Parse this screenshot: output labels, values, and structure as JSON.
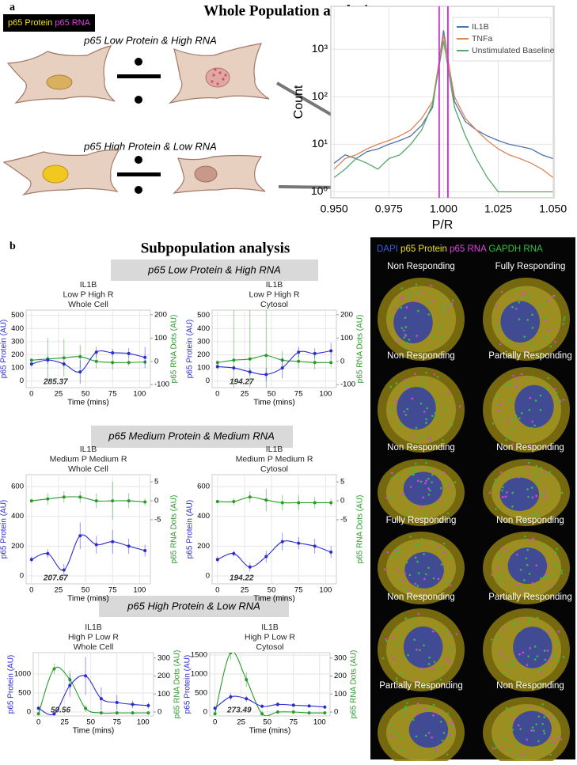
{
  "panel_a": {
    "label": "a",
    "title": "Whole Population analysis",
    "legend_protein": "p65 Protein",
    "legend_rna": "p65 RNA",
    "row1": "p65 Low Protein & High RNA",
    "row2": "p65 High Protein & Low RNA"
  },
  "panel_b": {
    "label": "b",
    "title": "Subpopulation analysis",
    "groups": [
      "p65 Low Protein & High RNA",
      "p65 Medium Protein & Medium RNA",
      "p65 High Protein & Low RNA"
    ]
  },
  "micrograph": {
    "channels": [
      {
        "name": "DAPI",
        "color": "#3a5fd8"
      },
      {
        "name": "p65 Protein",
        "color": "#f0e020"
      },
      {
        "name": "p65 RNA",
        "color": "#e040e0"
      },
      {
        "name": "GAPDH RNA",
        "color": "#30c040"
      }
    ],
    "cells": [
      "Non Responding",
      "Fully Responding",
      "Non Responding",
      "Partially Responding",
      "Non Responding",
      "Non Responding",
      "Fully Responding",
      "Non Responding",
      "Non Responding",
      "Partially Responding",
      "Partially Responding",
      "Non Responding"
    ]
  },
  "chart_data": [
    {
      "type": "line",
      "xlabel": "P/R",
      "ylabel": "Count",
      "log_y": true,
      "grid": true,
      "legend": "upper right",
      "xlim": [
        0.9485,
        1.0505
      ],
      "ylim": [
        0.75,
        8000
      ],
      "xticks": [
        {
          "value": 0.95,
          "label": "0.950"
        },
        0.975,
        {
          "value": 1.0,
          "label": "1.000"
        },
        1.025,
        {
          "value": 1.05,
          "label": "1.050"
        }
      ],
      "yticks": [
        {
          "value": 1,
          "label": "10⁰"
        },
        {
          "value": 10,
          "label": "10¹"
        },
        {
          "value": 100,
          "label": "10²"
        },
        {
          "value": 1000,
          "label": "10³"
        }
      ],
      "vlines": [
        0.998,
        1.002
      ],
      "vline_color": "#e020e0",
      "x": [
        0.95,
        0.955,
        0.96,
        0.965,
        0.97,
        0.975,
        0.98,
        0.985,
        0.99,
        0.995,
        1.0,
        1.005,
        1.01,
        1.015,
        1.02,
        1.025,
        1.03,
        1.035,
        1.04,
        1.045,
        1.05
      ],
      "series": [
        {
          "name": "IL1B",
          "color": "#4c72b0",
          "values": [
            4,
            6,
            5,
            7,
            8,
            10,
            12,
            15,
            25,
            60,
            2500,
            80,
            30,
            20,
            15,
            12,
            10,
            9,
            8,
            6,
            5
          ]
        },
        {
          "name": "TNFa",
          "color": "#dd8452",
          "values": [
            3,
            5,
            6,
            8,
            10,
            12,
            15,
            20,
            35,
            80,
            2000,
            100,
            35,
            20,
            12,
            8,
            6,
            5,
            4,
            3,
            2
          ]
        },
        {
          "name": "Unstimulated Baseline",
          "color": "#55a868",
          "values": [
            2,
            3,
            5,
            4,
            3,
            5,
            6,
            10,
            20,
            70,
            1500,
            60,
            15,
            5,
            2,
            1,
            1,
            1,
            1,
            1,
            1
          ]
        }
      ]
    },
    {
      "type": "dual",
      "title": [
        "IL1B",
        "Low P High R",
        "Whole Cell"
      ],
      "xlabel": "Time (mins)",
      "ylabel": "p65 Protein (AU)",
      "y2label": "p65 RNA Dots (AU)",
      "annotation": "285.37",
      "grid": true,
      "xlim": [
        -5,
        110
      ],
      "xticks": [
        0,
        25,
        50,
        75,
        100
      ],
      "ylim": [
        -50,
        540
      ],
      "yticks": [
        0,
        100,
        200,
        300,
        400,
        500
      ],
      "y2lim": [
        -113,
        220
      ],
      "y2ticks": [
        -100,
        0,
        100,
        200
      ],
      "x": [
        0,
        15,
        30,
        45,
        60,
        75,
        90,
        105
      ],
      "series": [
        {
          "color": "#2b2bd0",
          "values": [
            130,
            160,
            130,
            70,
            220,
            215,
            210,
            180
          ],
          "errors": [
            20,
            30,
            25,
            90,
            40,
            30,
            40,
            80
          ]
        },
        {
          "color": "#2a9a2a",
          "axis": "y2",
          "values": [
            5,
            10,
            15,
            20,
            0,
            -5,
            -5,
            -3
          ],
          "errors": [
            5,
            90,
            80,
            50,
            30,
            30,
            15,
            10
          ]
        }
      ]
    },
    {
      "type": "dual",
      "title": [
        "IL1B",
        "Low P High R",
        "Cytosol"
      ],
      "xlabel": "Time (mins)",
      "ylabel": "p65 Protein (AU)",
      "y2label": "p65 RNA Dots (AU)",
      "annotation": "194.27",
      "grid": true,
      "xlim": [
        -5,
        110
      ],
      "xticks": [
        0,
        25,
        50,
        75,
        100
      ],
      "ylim": [
        -50,
        540
      ],
      "yticks": [
        0,
        100,
        200,
        300,
        400,
        500
      ],
      "y2lim": [
        -113,
        220
      ],
      "y2ticks": [
        -100,
        0,
        100,
        200
      ],
      "x": [
        0,
        15,
        30,
        45,
        60,
        75,
        90,
        105
      ],
      "series": [
        {
          "color": "#2b2bd0",
          "values": [
            110,
            100,
            70,
            50,
            100,
            220,
            210,
            230
          ],
          "errors": [
            20,
            20,
            30,
            50,
            80,
            40,
            40,
            60
          ]
        },
        {
          "color": "#2a9a2a",
          "axis": "y2",
          "values": [
            -5,
            5,
            10,
            25,
            5,
            0,
            -5,
            -5
          ],
          "errors": [
            10,
            250,
            300,
            200,
            40,
            30,
            30,
            20
          ]
        }
      ]
    },
    {
      "type": "dual",
      "title": [
        "IL1B",
        "Medium P Medium R",
        "Whole Cell"
      ],
      "xlabel": "Time (mins)",
      "ylabel": "p65 Protein (AU)",
      "y2label": "p65 RNA Dots (AU)",
      "annotation": "207.67",
      "grid": true,
      "xlim": [
        -5,
        110
      ],
      "xticks": [
        0,
        25,
        50,
        75,
        100
      ],
      "ylim": [
        -53,
        680
      ],
      "yticks": [
        0,
        200,
        400,
        600
      ],
      "y2lim": [
        -21.9,
        6.9
      ],
      "y2ticks": [
        -5,
        0,
        5
      ],
      "x": [
        0,
        15,
        30,
        45,
        60,
        75,
        90,
        105
      ],
      "series": [
        {
          "color": "#2b2bd0",
          "values": [
            110,
            150,
            40,
            270,
            210,
            230,
            200,
            170
          ],
          "errors": [
            20,
            30,
            40,
            90,
            60,
            80,
            50,
            40
          ]
        },
        {
          "color": "#2a9a2a",
          "axis": "y2",
          "values": [
            0,
            0.5,
            1,
            1,
            0,
            0,
            0,
            -0.3
          ],
          "errors": [
            0.5,
            1.5,
            1.5,
            1.5,
            2,
            5,
            2,
            1
          ]
        }
      ]
    },
    {
      "type": "dual",
      "title": [
        "IL1B",
        "Medium P Medium R",
        "Cytosol"
      ],
      "xlabel": "Time (mins)",
      "ylabel": "p65 Protein (AU)",
      "y2label": "p65 RNA Dots (AU)",
      "annotation": "194.22",
      "grid": true,
      "xlim": [
        -5,
        110
      ],
      "xticks": [
        0,
        25,
        50,
        75,
        100
      ],
      "ylim": [
        -53,
        680
      ],
      "yticks": [
        0,
        200,
        400,
        600
      ],
      "y2lim": [
        -21.9,
        6.9
      ],
      "y2ticks": [
        -5,
        0,
        5
      ],
      "x": [
        0,
        15,
        30,
        45,
        60,
        75,
        90,
        105
      ],
      "series": [
        {
          "color": "#2b2bd0",
          "values": [
            110,
            150,
            60,
            130,
            230,
            220,
            200,
            160
          ],
          "errors": [
            20,
            20,
            30,
            40,
            60,
            40,
            50,
            40
          ]
        },
        {
          "color": "#2a9a2a",
          "axis": "y2",
          "values": [
            -0.2,
            -0.2,
            1,
            0.2,
            -0.5,
            -0.5,
            -0.5,
            -0.5
          ],
          "errors": [
            0.5,
            1,
            1.5,
            3,
            2,
            2,
            1.5,
            1
          ]
        }
      ]
    },
    {
      "type": "dual",
      "title": [
        "IL1B",
        "High P Low R",
        "Whole Cell"
      ],
      "xlabel": "Time (mins)",
      "ylabel": "p65 Protein (AU)",
      "y2label": "p65 RNA Dots (AU)",
      "annotation": "50.56",
      "grid": true,
      "xlim": [
        -5,
        110
      ],
      "xticks": [
        0,
        25,
        50,
        75,
        100
      ],
      "ylim": [
        -104,
        1563
      ],
      "yticks": [
        0,
        500,
        1000
      ],
      "y2lim": [
        -22,
        330
      ],
      "y2ticks": [
        0,
        100,
        200,
        300
      ],
      "x": [
        0,
        15,
        30,
        45,
        60,
        75,
        90,
        105
      ],
      "series": [
        {
          "color": "#2b2bd0",
          "values": [
            100,
            -50,
            700,
            950,
            350,
            250,
            200,
            170
          ],
          "errors": [
            50,
            50,
            300,
            500,
            300,
            200,
            100,
            80
          ]
        },
        {
          "color": "#2a9a2a",
          "axis": "y2",
          "values": [
            -10,
            240,
            180,
            20,
            -5,
            -5,
            -5,
            -5
          ],
          "errors": [
            10,
            30,
            50,
            20,
            10,
            10,
            10,
            10
          ]
        }
      ]
    },
    {
      "type": "dual",
      "title": [
        "IL1B",
        "High P Low R",
        "Cytosol"
      ],
      "xlabel": "Time (mins)",
      "ylabel": "p65 Protein (AU)",
      "y2label": "p65 RNA Dots (AU)",
      "annotation": "273.49",
      "grid": true,
      "xlim": [
        -5,
        110
      ],
      "xticks": [
        0,
        25,
        50,
        75,
        100
      ],
      "ylim": [
        -104,
        1563
      ],
      "yticks": [
        0,
        500,
        1000,
        1500
      ],
      "y2lim": [
        -22,
        330
      ],
      "y2ticks": [
        0,
        100,
        200,
        300
      ],
      "x": [
        0,
        15,
        30,
        45,
        60,
        75,
        90,
        105
      ],
      "series": [
        {
          "color": "#2b2bd0",
          "values": [
            100,
            400,
            350,
            150,
            200,
            180,
            160,
            130
          ],
          "errors": [
            50,
            100,
            80,
            50,
            60,
            50,
            40,
            40
          ]
        },
        {
          "color": "#2a9a2a",
          "axis": "y2",
          "values": [
            -10,
            330,
            180,
            -10,
            0,
            0,
            -5,
            -5
          ],
          "errors": [
            10,
            40,
            40,
            20,
            10,
            10,
            10,
            10
          ]
        }
      ]
    }
  ]
}
